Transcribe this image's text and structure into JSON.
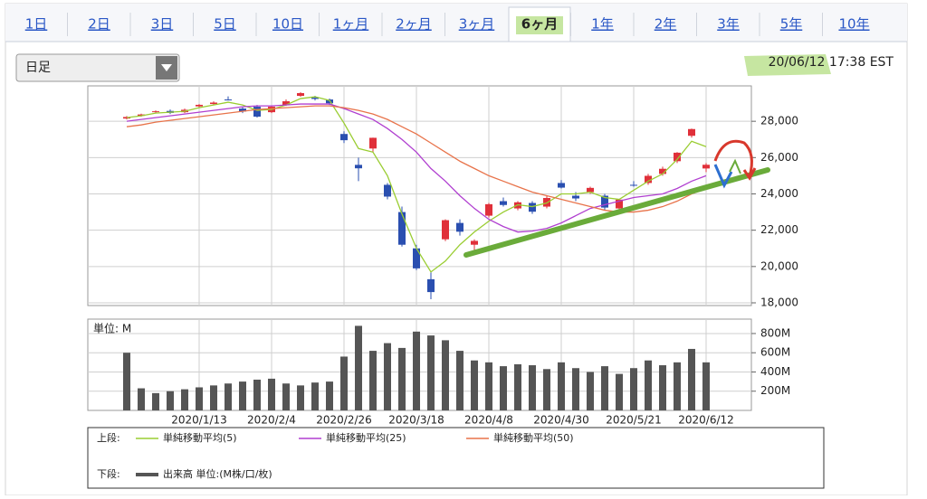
{
  "tabs": [
    "1日",
    "2日",
    "3日",
    "5日",
    "10日",
    "1ヶ月",
    "2ヶ月",
    "3ヶ月",
    "6ヶ月",
    "1年",
    "2年",
    "3年",
    "5年",
    "10年"
  ],
  "active_tab": 8,
  "dropdown": "日足",
  "timestamp": "20/06/12 17:38 EST",
  "legend": {
    "upper_label": "上段:",
    "lower_label": "下段:"
  },
  "chart_data": [
    {
      "type": "candlestick",
      "categories": [
        null,
        null,
        null,
        null,
        null,
        "2020/1/13",
        null,
        null,
        null,
        null,
        "2020/2/4",
        null,
        null,
        null,
        null,
        "2020/2/26",
        null,
        null,
        null,
        null,
        "2020/3/18",
        null,
        null,
        null,
        null,
        "2020/4/8",
        null,
        null,
        null,
        null,
        "2020/4/30",
        null,
        null,
        null,
        null,
        "2020/5/21",
        null,
        null,
        null,
        null,
        "2020/6/12"
      ],
      "open": [
        28150,
        28300,
        28520,
        28570,
        28500,
        28820,
        28950,
        29200,
        28700,
        28800,
        28500,
        28900,
        29400,
        29300,
        29200,
        27300,
        25600,
        26500,
        24500,
        23000,
        21000,
        19300,
        21500,
        22400,
        21200,
        22800,
        23600,
        23200,
        23500,
        23300,
        24600,
        23900,
        24100,
        23900,
        23200,
        24500,
        24600,
        25100,
        25800,
        27200,
        25400
      ],
      "high": [
        28290,
        28420,
        28600,
        28650,
        28700,
        28950,
        29100,
        29370,
        28800,
        28900,
        28850,
        29200,
        29600,
        29400,
        29250,
        27450,
        26000,
        27100,
        24600,
        23300,
        21200,
        19700,
        22600,
        22600,
        21500,
        23500,
        23800,
        23600,
        23600,
        23900,
        24760,
        24100,
        24400,
        24000,
        23700,
        24700,
        25100,
        25500,
        26300,
        27600,
        25700
      ],
      "low": [
        28100,
        28250,
        28480,
        28400,
        28450,
        28780,
        28900,
        29150,
        28450,
        28200,
        28450,
        28850,
        29350,
        29150,
        28900,
        26800,
        24700,
        26300,
        23700,
        21100,
        19800,
        18200,
        21400,
        21700,
        20800,
        22700,
        23300,
        23100,
        22900,
        23200,
        24300,
        23600,
        24000,
        23100,
        23000,
        24400,
        24500,
        25000,
        25700,
        27100,
        25200
      ],
      "close": [
        28235,
        28376,
        28551,
        28462,
        28634,
        28907,
        29030,
        29186,
        28535,
        28256,
        28807,
        29102,
        29551,
        29232,
        28992,
        26957,
        25409,
        27090,
        23851,
        21200,
        19898,
        18592,
        22552,
        21917,
        21413,
        23433,
        23390,
        23537,
        23018,
        23775,
        24345,
        23749,
        24331,
        23247,
        23685,
        24474,
        24995,
        25383,
        26269,
        27572,
        25605
      ],
      "up_color": "#e0303a",
      "down_color": "#2a4fb0",
      "series": [
        {
          "name": "単純移動平均(5)",
          "color": "#9acd32",
          "values": [
            28200,
            28300,
            28450,
            28500,
            28550,
            28750,
            28900,
            29050,
            28900,
            28600,
            28650,
            28900,
            29250,
            29350,
            29150,
            27900,
            26500,
            26300,
            25000,
            22900,
            21000,
            19700,
            20300,
            21200,
            21900,
            22500,
            23000,
            23400,
            23300,
            23500,
            24000,
            24000,
            24100,
            23800,
            23700,
            24200,
            24700,
            25100,
            25900,
            26900,
            26600
          ]
        },
        {
          "name": "単純移動平均(25)",
          "color": "#b03fd0",
          "values": [
            28000,
            28100,
            28200,
            28300,
            28400,
            28500,
            28600,
            28700,
            28800,
            28850,
            28850,
            28900,
            28950,
            28950,
            28950,
            28700,
            28400,
            28100,
            27600,
            27000,
            26300,
            25400,
            24700,
            23900,
            23200,
            22600,
            22200,
            21900,
            21950,
            22100,
            22400,
            22800,
            23200,
            23400,
            23600,
            23800,
            23900,
            24000,
            24300,
            24700,
            25000
          ]
        },
        {
          "name": "単純移動平均(50)",
          "color": "#e8734a",
          "values": [
            27700,
            27800,
            27950,
            28050,
            28150,
            28250,
            28350,
            28450,
            28550,
            28650,
            28700,
            28750,
            28800,
            28850,
            28850,
            28750,
            28600,
            28400,
            28100,
            27700,
            27300,
            26800,
            26300,
            25800,
            25400,
            25000,
            24700,
            24400,
            24100,
            23900,
            23700,
            23500,
            23300,
            23100,
            23000,
            23000,
            23100,
            23300,
            23600,
            24000,
            24300
          ]
        }
      ],
      "ylim": [
        17850,
        29950
      ],
      "yticks": [
        {
          "value": 18000,
          "label": "18,000"
        },
        {
          "value": 20000,
          "label": "20,000"
        },
        {
          "value": 22000,
          "label": "22,000"
        },
        {
          "value": 24000,
          "label": "24,000"
        },
        {
          "value": 26000,
          "label": "26,000"
        },
        {
          "value": 28000,
          "label": "28,000"
        }
      ],
      "grid": true
    },
    {
      "type": "bar",
      "unit_label": "単位: M",
      "series": [
        {
          "name": "出来高 単位:(M株/口/枚)",
          "color": "#555555",
          "values": [
            600,
            230,
            180,
            200,
            220,
            240,
            260,
            280,
            300,
            320,
            330,
            280,
            260,
            290,
            300,
            560,
            880,
            620,
            700,
            650,
            820,
            780,
            730,
            620,
            520,
            500,
            460,
            480,
            470,
            430,
            500,
            440,
            400,
            460,
            380,
            440,
            520,
            470,
            500,
            640,
            500
          ]
        }
      ],
      "ylim": [
        0,
        950
      ],
      "yticks": [
        {
          "value": 200,
          "label": "200M"
        },
        {
          "value": 400,
          "label": "400M"
        },
        {
          "value": 600,
          "label": "600M"
        },
        {
          "value": 800,
          "label": "800M"
        }
      ],
      "grid": true
    }
  ]
}
